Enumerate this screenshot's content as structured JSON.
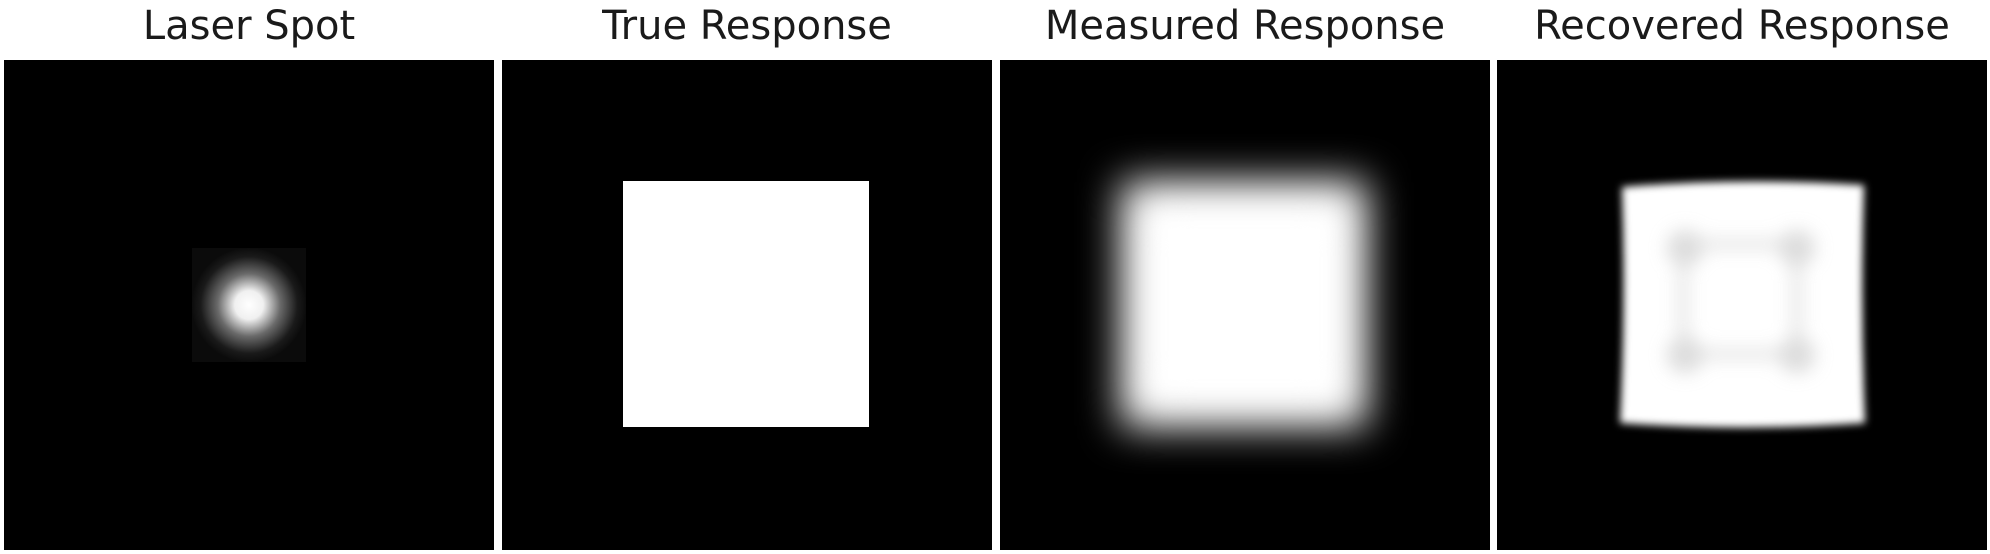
{
  "panels": [
    {
      "title": "Laser Spot",
      "image": "gaussian-laser-spot"
    },
    {
      "title": "True Response",
      "image": "sharp-white-square"
    },
    {
      "title": "Measured Response",
      "image": "blurred-white-square"
    },
    {
      "title": "Recovered Response",
      "image": "deconvolved-square-with-ringing"
    }
  ],
  "colors": {
    "background": "#000000",
    "signal": "#ffffff",
    "title_text": "#1a1a1a"
  }
}
